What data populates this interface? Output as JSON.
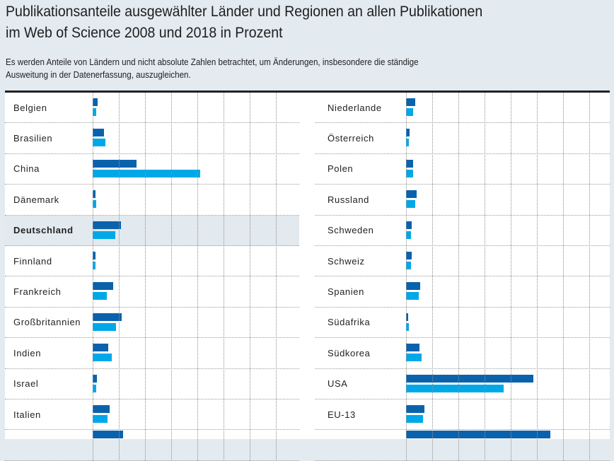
{
  "header": {
    "title_lines": [
      "Publikationsanteile ausgewählter Länder und Regionen an allen Publikationen",
      "im Web of Science 2008 und 2018 in Prozent"
    ],
    "subtitle_lines": [
      "Es werden Anteile von Ländern und nicht absolute Zahlen betrachtet, um Änderungen, insbesondere die ständige",
      "Ausweitung in der Datenerfassung, auszugleichen."
    ]
  },
  "colors": {
    "series_2008": "#0a62ad",
    "series_2018": "#00a8e8",
    "highlight_row": "#e2e9ef",
    "background": "#e3eaf0"
  },
  "chart_data": {
    "type": "bar",
    "orientation": "horizontal",
    "title": "Publikationsanteile ausgewählter Länder und Regionen an allen Publikationen im Web of Science 2008 und 2018 in Prozent",
    "subtitle": "Es werden Anteile von Ländern und nicht absolute Zahlen betrachtet, um Änderungen, insbesondere die ständige Ausweitung in der Datenerfassung, auszugleichen.",
    "xlabel": "",
    "ylabel": "",
    "unit": "%",
    "xlim": [
      0,
      40
    ],
    "grid_step": 5,
    "grid": true,
    "legend": "none-visible",
    "series_names": [
      "2008",
      "2018"
    ],
    "highlighted_category": "Deutschland",
    "panels": [
      {
        "categories": [
          "Belgien",
          "Brasilien",
          "China",
          "Dänemark",
          "Deutschland",
          "Finnland",
          "Frankreich",
          "Großbritannien",
          "Indien",
          "Israel",
          "Italien",
          ""
        ],
        "series": [
          {
            "name": "2008",
            "values": [
              0.9,
              2.2,
              8.4,
              0.6,
              5.4,
              0.6,
              3.9,
              5.6,
              3.0,
              0.8,
              3.3,
              5.8
            ]
          },
          {
            "name": "2018",
            "values": [
              0.7,
              2.4,
              20.6,
              0.7,
              4.3,
              0.5,
              2.7,
              4.5,
              3.6,
              0.7,
              2.9,
              null
            ]
          }
        ]
      },
      {
        "categories": [
          "Niederlande",
          "Österreich",
          "Polen",
          "Russland",
          "Schweden",
          "Schweiz",
          "Spanien",
          "Südafrika",
          "Südkorea",
          "USA",
          "EU-13",
          ""
        ],
        "series": [
          {
            "name": "2008",
            "values": [
              1.8,
              0.7,
              1.4,
              2.0,
              1.1,
              1.1,
              2.7,
              0.4,
              2.6,
              24.3,
              3.5,
              27.6
            ]
          },
          {
            "name": "2018",
            "values": [
              1.4,
              0.5,
              1.4,
              1.8,
              0.9,
              1.0,
              2.4,
              0.5,
              3.0,
              18.6,
              3.2,
              null
            ]
          }
        ]
      }
    ]
  }
}
